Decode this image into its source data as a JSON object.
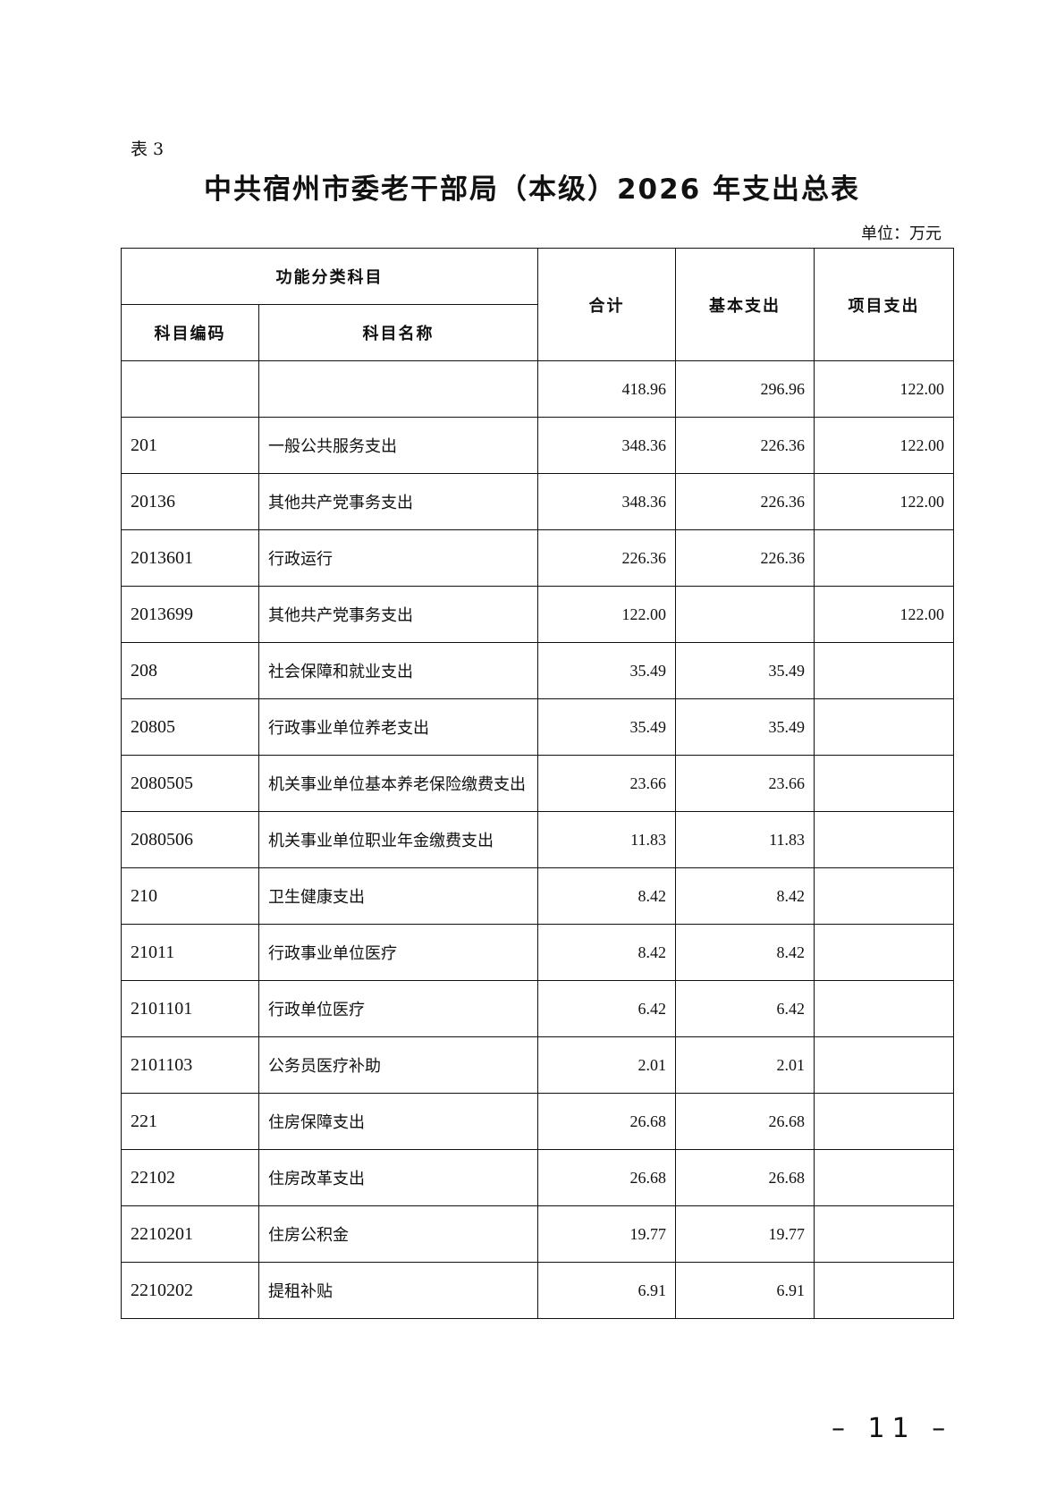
{
  "label": "表 3",
  "title": "中共宿州市委老干部局（本级）2026 年支出总表",
  "unit": "单位：万元",
  "header": {
    "group": "功能分类科目",
    "code": "科目编码",
    "name": "科目名称",
    "total": "合计",
    "basic": "基本支出",
    "project": "项目支出"
  },
  "rows": [
    {
      "code": "",
      "name": "",
      "total": "418.96",
      "basic": "296.96",
      "project": "122.00"
    },
    {
      "code": "201",
      "name": "一般公共服务支出",
      "total": "348.36",
      "basic": "226.36",
      "project": "122.00"
    },
    {
      "code": "20136",
      "name": "其他共产党事务支出",
      "total": "348.36",
      "basic": "226.36",
      "project": "122.00"
    },
    {
      "code": "2013601",
      "name": "行政运行",
      "total": "226.36",
      "basic": "226.36",
      "project": ""
    },
    {
      "code": "2013699",
      "name": "其他共产党事务支出",
      "total": "122.00",
      "basic": "",
      "project": "122.00"
    },
    {
      "code": "208",
      "name": "社会保障和就业支出",
      "total": "35.49",
      "basic": "35.49",
      "project": ""
    },
    {
      "code": "20805",
      "name": "行政事业单位养老支出",
      "total": "35.49",
      "basic": "35.49",
      "project": ""
    },
    {
      "code": "2080505",
      "name": "机关事业单位基本养老保险缴费支出",
      "total": "23.66",
      "basic": "23.66",
      "project": ""
    },
    {
      "code": "2080506",
      "name": "机关事业单位职业年金缴费支出",
      "total": "11.83",
      "basic": "11.83",
      "project": ""
    },
    {
      "code": "210",
      "name": "卫生健康支出",
      "total": "8.42",
      "basic": "8.42",
      "project": ""
    },
    {
      "code": "21011",
      "name": "行政事业单位医疗",
      "total": "8.42",
      "basic": "8.42",
      "project": ""
    },
    {
      "code": "2101101",
      "name": "行政单位医疗",
      "total": "6.42",
      "basic": "6.42",
      "project": ""
    },
    {
      "code": "2101103",
      "name": "公务员医疗补助",
      "total": "2.01",
      "basic": "2.01",
      "project": ""
    },
    {
      "code": "221",
      "name": "住房保障支出",
      "total": "26.68",
      "basic": "26.68",
      "project": ""
    },
    {
      "code": "22102",
      "name": "住房改革支出",
      "total": "26.68",
      "basic": "26.68",
      "project": ""
    },
    {
      "code": "2210201",
      "name": "住房公积金",
      "total": "19.77",
      "basic": "19.77",
      "project": ""
    },
    {
      "code": "2210202",
      "name": "提租补贴",
      "total": "6.91",
      "basic": "6.91",
      "project": ""
    }
  ],
  "page_number": "– 11 –"
}
